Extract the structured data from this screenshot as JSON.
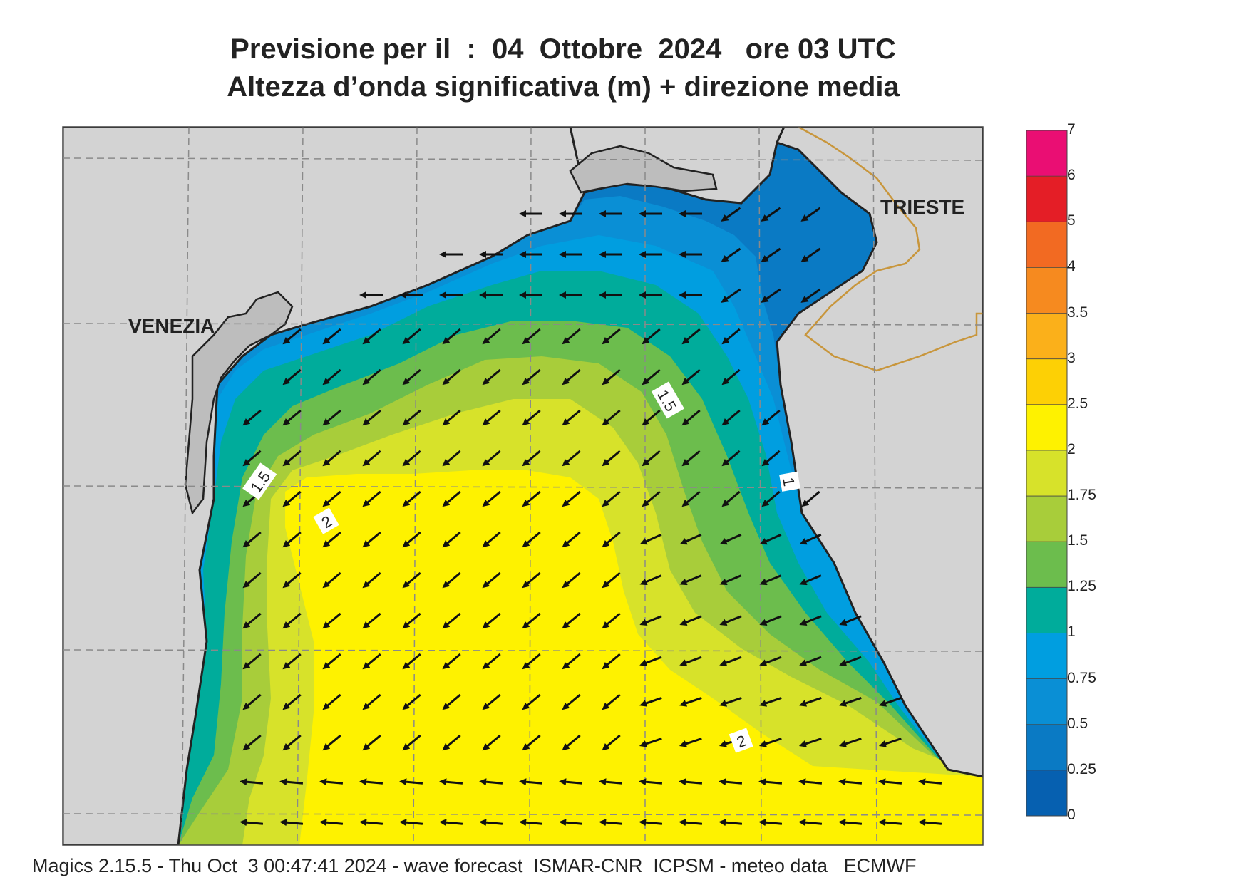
{
  "title": {
    "line1": "Previsione per il  :  04  Ottobre  2024   ore 03 UTC",
    "line2": "Altezza d’onda significativa (m) + direzione media"
  },
  "places": {
    "venezia": "VENEZIA",
    "trieste": "TRIESTE"
  },
  "contour_labels": [
    "1.5",
    "1.5",
    "2",
    "2",
    "1"
  ],
  "colorbar": {
    "labels": [
      "7",
      "6",
      "5",
      "4",
      "3.5",
      "3",
      "2.5",
      "2",
      "1.75",
      "1.5",
      "1.25",
      "1",
      "0.75",
      "0.5",
      "0.25",
      "0"
    ],
    "colors": [
      "#ea0e73",
      "#e41e26",
      "#f26a22",
      "#f68a1f",
      "#fbb01a",
      "#fdd005",
      "#fef200",
      "#d7e22a",
      "#a8cd3a",
      "#6cbd4d",
      "#00ac9b",
      "#009ee0",
      "#0a8fd5",
      "#0a7ac4",
      "#0660b0"
    ]
  },
  "footer": "Magics 2.15.5 - Thu Oct  3 00:47:41 2024 - wave forecast  ISMAR-CNR  ICPSM - meteo data   ECMWF"
}
